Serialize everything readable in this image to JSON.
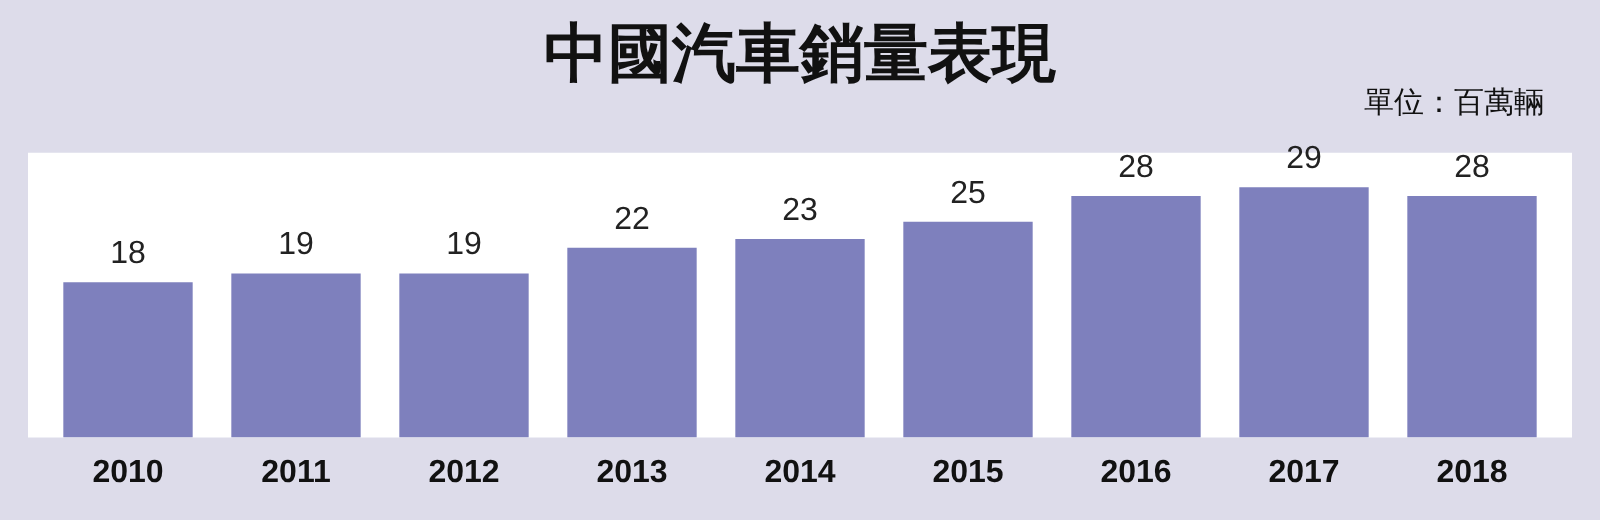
{
  "chart_data": {
    "type": "bar",
    "title": "中國汽車銷量表現",
    "annotations": [
      "單位：百萬輛"
    ],
    "categories": [
      "2010",
      "2011",
      "2012",
      "2013",
      "2014",
      "2015",
      "2016",
      "2017",
      "2018"
    ],
    "values": [
      18,
      19,
      19,
      22,
      23,
      25,
      28,
      29,
      28
    ],
    "color": "#7e80bd",
    "ylim": [
      0,
      33
    ],
    "tick_labels": "x",
    "grid": false,
    "legend": false,
    "data_labels": true
  }
}
